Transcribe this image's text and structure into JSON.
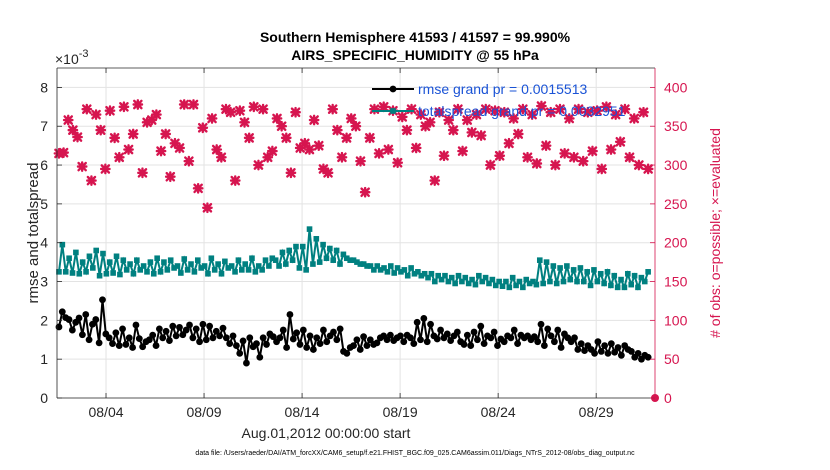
{
  "title_line1": "Southern Hemisphere 41593 / 41597 = 99.990%",
  "title_line2": "AIRS_SPECIFIC_HUMIDITY @ 55 hPa",
  "footer": "data file: /Users/raeder/DAI/ATM_forcXX/CAM6_setup/f.e21.FHIST_BGC.f09_025.CAM6assim.011/Diags_NTrS_2012-08/obs_diag_output.nc",
  "colors": {
    "rmse": "#000000",
    "totalspread": "#008080",
    "obs": "#d6154f",
    "legend_text": "#1a53d6"
  },
  "chart_data": {
    "type": "line",
    "x_start_label": "Aug.01,2012 00:00:00 start",
    "xlabel": "Aug.01,2012 00:00:00 start",
    "xlim": [
      1.5,
      32.0
    ],
    "xticks": [
      4,
      9,
      14,
      19,
      24,
      29
    ],
    "xtick_labels": [
      "08/04",
      "08/09",
      "08/14",
      "08/19",
      "08/24",
      "08/29"
    ],
    "left_axis": {
      "label": "rmse and totalspread",
      "exponent_label": "×10",
      "exponent": "-3",
      "lim": [
        0,
        8.5
      ],
      "ticks": [
        0,
        1,
        2,
        3,
        4,
        5,
        6,
        7,
        8
      ]
    },
    "right_axis": {
      "label": "# of obs: o=possible; ×=evaluated",
      "lim": [
        0,
        425
      ],
      "ticks": [
        0,
        50,
        100,
        150,
        200,
        250,
        300,
        350,
        400
      ]
    },
    "legend_position": "top-right",
    "legend": [
      {
        "label": "rmse grand pr = 0.0015513"
      },
      {
        "label": "totalspread grand pr = 0.0032951"
      }
    ],
    "series": [
      {
        "name": "rmse grand pr = 0.0015513",
        "axis": "left",
        "marker": "circle",
        "values": [
          1.83,
          2.22,
          2.07,
          2.02,
          1.75,
          1.95,
          2.06,
          1.63,
          2.15,
          1.5,
          1.9,
          2.02,
          1.42,
          2.53,
          1.65,
          1.55,
          1.4,
          1.68,
          1.35,
          1.78,
          1.38,
          1.55,
          1.3,
          1.88,
          1.53,
          1.32,
          1.45,
          1.5,
          1.62,
          1.35,
          1.78,
          1.55,
          1.72,
          1.48,
          1.85,
          1.6,
          1.82,
          1.63,
          1.75,
          1.88,
          1.55,
          1.78,
          1.45,
          1.9,
          1.5,
          1.85,
          1.55,
          1.72,
          1.6,
          1.8,
          1.55,
          1.4,
          1.6,
          1.35,
          1.15,
          1.47,
          0.9,
          1.55,
          1.32,
          1.4,
          1.05,
          1.55,
          1.38,
          1.65,
          1.58,
          1.45,
          1.55,
          1.75,
          1.3,
          2.15,
          1.52,
          1.68,
          1.38,
          1.75,
          1.3,
          1.6,
          1.25,
          1.55,
          1.4,
          1.75,
          1.45,
          1.6,
          1.7,
          1.5,
          1.78,
          1.2,
          1.15,
          1.3,
          1.35,
          1.5,
          1.25,
          1.58,
          1.35,
          1.5,
          1.38,
          1.42,
          1.55,
          1.6,
          1.5,
          1.62,
          1.48,
          1.55,
          1.6,
          1.45,
          1.62,
          1.55,
          1.4,
          1.95,
          1.5,
          2.05,
          1.45,
          1.9,
          1.6,
          1.52,
          1.75,
          1.55,
          1.65,
          1.48,
          1.6,
          1.7,
          1.45,
          1.38,
          1.62,
          1.35,
          1.7,
          1.5,
          1.85,
          1.4,
          1.6,
          1.55,
          1.7,
          1.35,
          1.52,
          1.45,
          1.6,
          1.55,
          1.75,
          1.4,
          1.62,
          1.55,
          1.6,
          1.5,
          1.58,
          1.45,
          1.9,
          1.35,
          1.78,
          1.6,
          1.45,
          1.75,
          1.3,
          1.65,
          1.55,
          1.45,
          1.55,
          1.25,
          1.4,
          1.22,
          1.35,
          1.25,
          1.15,
          1.45,
          1.2,
          1.35,
          1.15,
          1.4,
          1.18,
          1.3,
          1.1,
          1.35,
          1.25,
          1.2,
          1.05,
          1.15,
          1.0,
          1.1,
          1.05
        ]
      },
      {
        "name": "totalspread grand pr = 0.0032951",
        "axis": "left",
        "marker": "square",
        "values": [
          3.25,
          3.95,
          3.25,
          3.6,
          3.22,
          3.75,
          3.2,
          3.5,
          3.25,
          3.65,
          3.35,
          3.8,
          3.15,
          3.72,
          3.2,
          3.5,
          3.22,
          3.65,
          3.18,
          3.55,
          3.3,
          3.45,
          3.2,
          3.55,
          3.3,
          3.4,
          3.25,
          3.5,
          3.2,
          3.6,
          3.25,
          3.5,
          3.3,
          3.55,
          3.35,
          3.4,
          3.22,
          3.58,
          3.3,
          3.45,
          3.25,
          3.55,
          3.35,
          3.4,
          3.2,
          3.6,
          3.3,
          3.45,
          3.2,
          3.52,
          3.35,
          3.4,
          3.25,
          3.55,
          3.3,
          3.45,
          3.3,
          3.6,
          3.25,
          3.4,
          3.3,
          3.55,
          3.4,
          3.6,
          3.55,
          3.4,
          3.75,
          3.45,
          3.8,
          3.55,
          3.9,
          3.35,
          3.9,
          3.3,
          4.35,
          3.45,
          4.1,
          3.5,
          3.95,
          3.6,
          3.85,
          3.55,
          3.8,
          3.45,
          3.7,
          3.6,
          3.55,
          3.55,
          3.5,
          3.45,
          3.45,
          3.4,
          3.4,
          3.3,
          3.4,
          3.3,
          3.35,
          3.25,
          3.4,
          3.22,
          3.35,
          3.25,
          3.3,
          3.15,
          3.35,
          3.2,
          3.25,
          3.15,
          3.2,
          3.1,
          3.2,
          3.0,
          3.15,
          3.05,
          3.15,
          3.0,
          3.1,
          2.95,
          3.15,
          3.0,
          3.1,
          2.95,
          3.05,
          2.92,
          3.15,
          3.0,
          3.1,
          2.95,
          3.05,
          2.9,
          3.0,
          2.88,
          3.0,
          2.85,
          3.1,
          2.9,
          3.0,
          2.85,
          3.05,
          2.95,
          3.0,
          2.92,
          3.55,
          2.95,
          3.5,
          3.0,
          3.4,
          2.95,
          3.35,
          3.0,
          3.4,
          3.05,
          3.3,
          3.0,
          3.35,
          3.0,
          3.25,
          2.9,
          3.3,
          3.0,
          3.2,
          2.95,
          3.25,
          2.9,
          3.15,
          2.85,
          3.05,
          2.85,
          3.2,
          2.92,
          3.15,
          2.85,
          3.1,
          3.0,
          3.25
        ]
      },
      {
        "name": "# of obs possible / evaluated",
        "axis": "right",
        "marker": "cross",
        "values": [
          315,
          316,
          358,
          345,
          336,
          298,
          372,
          280,
          365,
          345,
          295,
          370,
          335,
          310,
          375,
          320,
          340,
          378,
          290,
          355,
          358,
          365,
          318,
          340,
          285,
          328,
          322,
          378,
          305,
          378,
          270,
          348,
          245,
          360,
          320,
          310,
          372,
          368,
          280,
          370,
          355,
          335,
          375,
          300,
          372,
          310,
          318,
          360,
          350,
          335,
          290,
          368,
          322,
          328,
          320,
          358,
          325,
          295,
          290,
          372,
          345,
          310,
          335,
          360,
          350,
          305,
          265,
          335,
          372,
          315,
          375,
          320,
          370,
          303,
          362,
          345,
          372,
          322,
          365,
          350,
          355,
          280,
          368,
          312,
          358,
          345,
          372,
          318,
          358,
          342,
          365,
          338,
          372,
          300,
          370,
          312,
          368,
          328,
          360,
          340,
          372,
          310,
          365,
          302,
          376,
          325,
          368,
          300,
          372,
          315,
          360,
          310,
          372,
          305,
          368,
          318,
          370,
          295,
          375,
          320,
          365,
          330,
          372,
          310,
          360,
          300,
          368,
          295
        ]
      }
    ]
  }
}
